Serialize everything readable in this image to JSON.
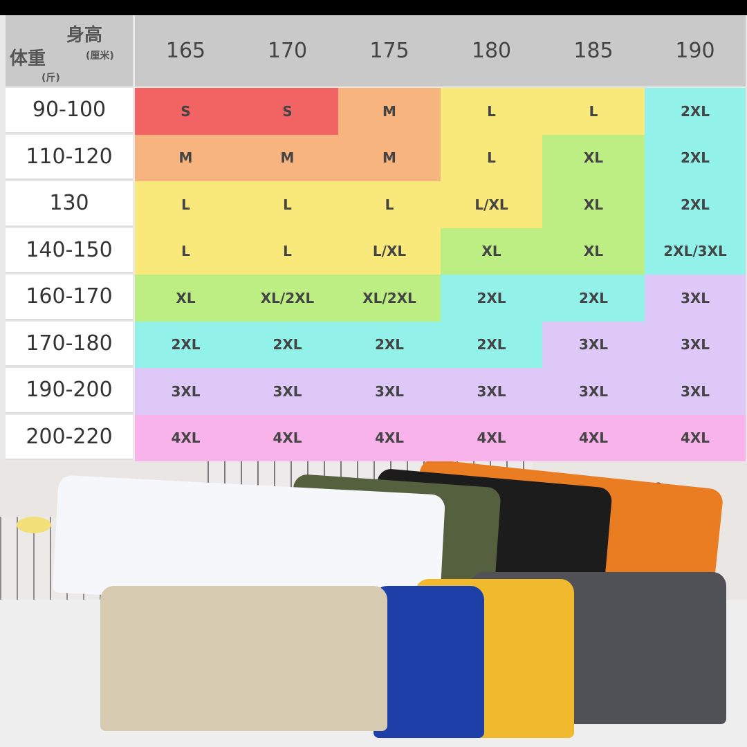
{
  "header": {
    "height_label": "身高",
    "height_unit": "(厘米)",
    "weight_label": "体重",
    "weight_unit": "(斤)",
    "heights": [
      "165",
      "170",
      "175",
      "180",
      "185",
      "190"
    ]
  },
  "colors": {
    "S": "#f26363",
    "M": "#f8b47e",
    "L": "#f9e87a",
    "L/XL": "#f9e87a",
    "XL": "#bdee84",
    "XL/2XL": "#bdee84",
    "2XL": "#92f2ea",
    "2XL/3XL": "#92f2ea",
    "3XL": "#ddc8f7",
    "4XL": "#f8b3ea"
  },
  "rows": [
    {
      "weight": "90-100",
      "sizes": [
        "S",
        "S",
        "M",
        "L",
        "L",
        "2XL"
      ]
    },
    {
      "weight": "110-120",
      "sizes": [
        "M",
        "M",
        "M",
        "L",
        "XL",
        "2XL"
      ]
    },
    {
      "weight": "130",
      "sizes": [
        "L",
        "L",
        "L",
        "L/XL",
        "XL",
        "2XL"
      ]
    },
    {
      "weight": "140-150",
      "sizes": [
        "L",
        "L",
        "L/XL",
        "XL",
        "XL",
        "2XL/3XL"
      ]
    },
    {
      "weight": "160-170",
      "sizes": [
        "XL",
        "XL/2XL",
        "XL/2XL",
        "2XL",
        "2XL",
        "3XL"
      ]
    },
    {
      "weight": "170-180",
      "sizes": [
        "2XL",
        "2XL",
        "2XL",
        "2XL",
        "3XL",
        "3XL"
      ]
    },
    {
      "weight": "190-200",
      "sizes": [
        "3XL",
        "3XL",
        "3XL",
        "3XL",
        "3XL",
        "3XL"
      ]
    },
    {
      "weight": "200-220",
      "sizes": [
        "4XL",
        "4XL",
        "4XL",
        "4XL",
        "4XL",
        "4XL"
      ]
    }
  ]
}
